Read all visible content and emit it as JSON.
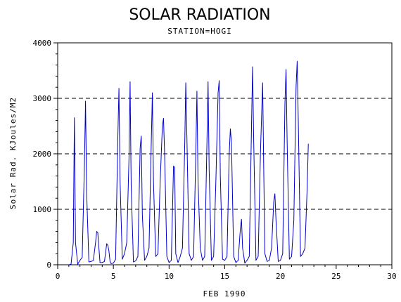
{
  "chart_data": {
    "type": "line",
    "title": "SOLAR RADIATION",
    "subtitle": "STATION=HOGI",
    "xlabel": "FEB 1990",
    "ylabel": "Solar Rad. KJoules/M2",
    "xlim": [
      0,
      30
    ],
    "ylim": [
      0,
      4000
    ],
    "xticks": [
      "0",
      "5",
      "10",
      "15",
      "20",
      "25",
      "30"
    ],
    "yticks": [
      "0",
      "1000",
      "2000",
      "3000",
      "4000"
    ],
    "grid": "horizontal dashed",
    "colors": {
      "series": "#0000cc",
      "grid": "#000000"
    },
    "series": [
      {
        "x": [
          1.0,
          1.2,
          1.4,
          1.5,
          1.6,
          1.8,
          2.0,
          2.2,
          2.4,
          2.5,
          2.6,
          2.8,
          3.0,
          3.2,
          3.4,
          3.5,
          3.6,
          3.7,
          3.8,
          4.0,
          4.2,
          4.4,
          4.5,
          4.6,
          4.7,
          4.8,
          5.0,
          5.2,
          5.4,
          5.5,
          5.6,
          5.8,
          6.0,
          6.2,
          6.4,
          6.5,
          6.6,
          6.8,
          7.0,
          7.2,
          7.4,
          7.5,
          7.6,
          7.8,
          8.0,
          8.2,
          8.4,
          8.5,
          8.6,
          8.8,
          9.0,
          9.2,
          9.4,
          9.5,
          9.6,
          9.8,
          10.0,
          10.2,
          10.4,
          10.5,
          10.6,
          10.8,
          11.0,
          11.2,
          11.4,
          11.5,
          11.6,
          11.8,
          12.0,
          12.2,
          12.4,
          12.5,
          12.6,
          12.8,
          13.0,
          13.2,
          13.4,
          13.5,
          13.6,
          13.8,
          14.0,
          14.2,
          14.4,
          14.5,
          14.6,
          14.8,
          15.0,
          15.2,
          15.4,
          15.5,
          15.6,
          15.8,
          16.0,
          16.2,
          16.4,
          16.5,
          16.6,
          16.8,
          17.0,
          17.2,
          17.4,
          17.5,
          17.6,
          17.8,
          18.0,
          18.2,
          18.4,
          18.5,
          18.6,
          18.8,
          19.0,
          19.2,
          19.4,
          19.5,
          19.6,
          19.8,
          20.0,
          20.2,
          20.4,
          20.5,
          20.6,
          20.8,
          21.0,
          21.2,
          21.4,
          21.5,
          21.6,
          21.8,
          22.0,
          22.2,
          22.4,
          22.5
        ],
        "y": [
          0,
          10,
          400,
          2650,
          400,
          10,
          80,
          130,
          1800,
          2950,
          1300,
          50,
          60,
          80,
          400,
          600,
          580,
          300,
          40,
          40,
          60,
          380,
          350,
          250,
          60,
          20,
          30,
          100,
          2300,
          3180,
          1500,
          100,
          200,
          400,
          1900,
          3300,
          1400,
          50,
          70,
          150,
          2100,
          2320,
          900,
          80,
          150,
          300,
          2200,
          3100,
          1500,
          150,
          200,
          1500,
          2500,
          2640,
          2000,
          150,
          40,
          80,
          1780,
          1750,
          200,
          40,
          150,
          300,
          2100,
          3280,
          2300,
          200,
          80,
          150,
          2000,
          3130,
          1500,
          300,
          80,
          150,
          2200,
          3300,
          1700,
          80,
          150,
          1500,
          3100,
          3320,
          1600,
          100,
          80,
          150,
          2000,
          2450,
          2200,
          150,
          40,
          80,
          650,
          820,
          300,
          30,
          80,
          150,
          2500,
          3570,
          2200,
          80,
          150,
          2000,
          3280,
          1700,
          200,
          60,
          80,
          300,
          1150,
          1280,
          800,
          60,
          80,
          200,
          2900,
          3520,
          2200,
          100,
          150,
          800,
          3200,
          3670,
          2600,
          150,
          200,
          300,
          1400,
          2180
        ]
      }
    ]
  }
}
